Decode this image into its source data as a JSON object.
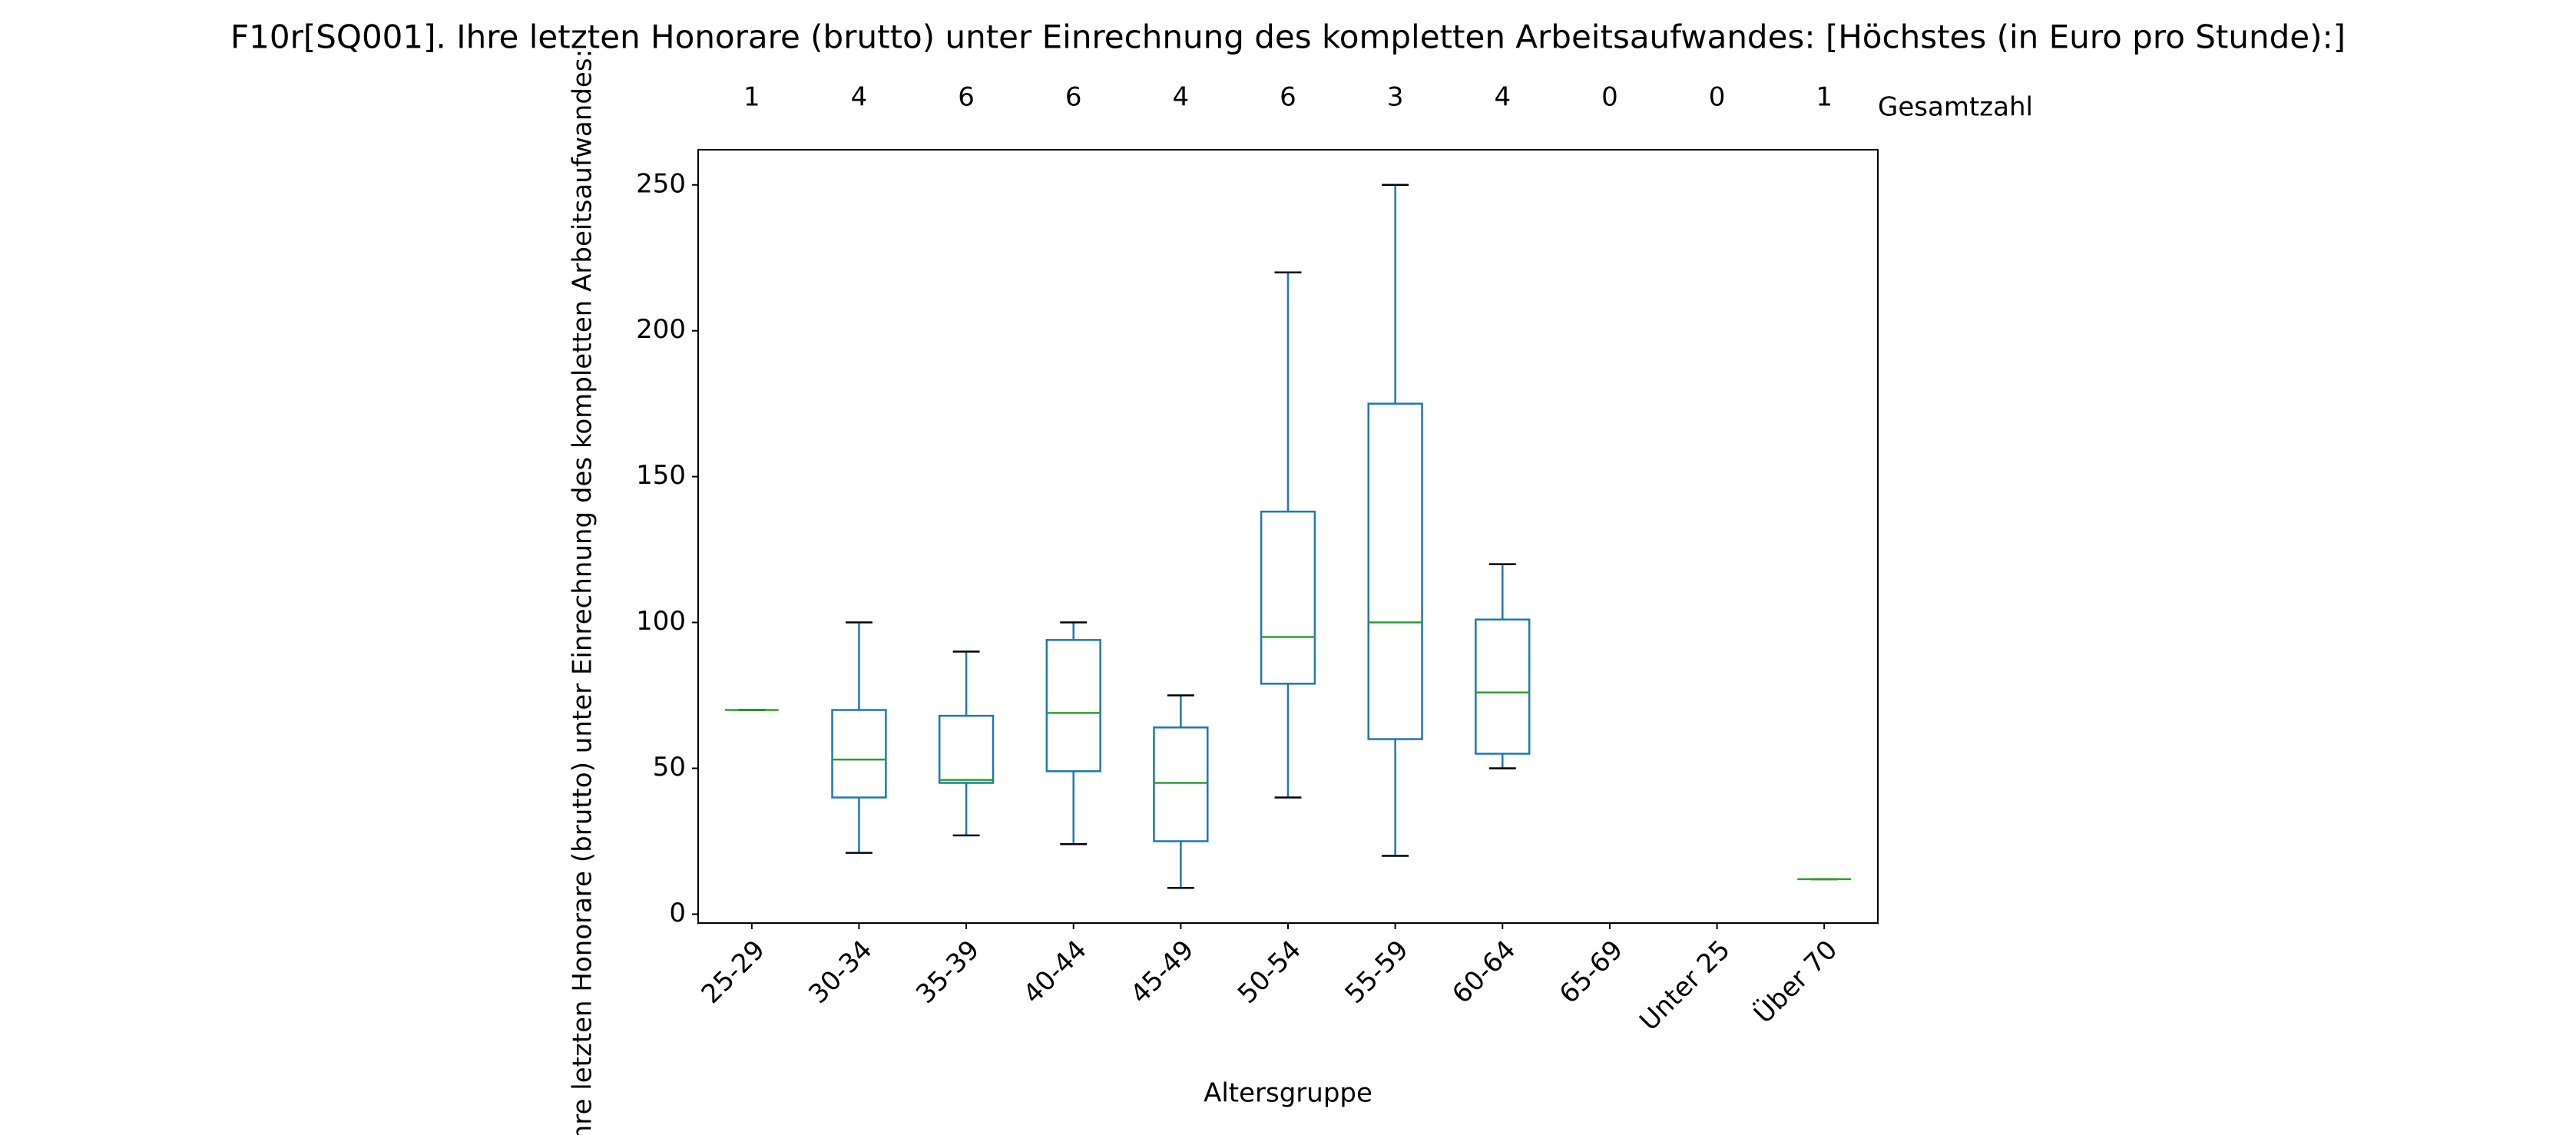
{
  "chart_data": {
    "type": "box",
    "title": "F10r[SQ001]. Ihre letzten Honorare (brutto) unter Einrechnung des kompletten Arbeitsaufwandes:  [Höchstes (in Euro pro Stunde):]",
    "x_label": "Altersgruppe",
    "y_label": "Ihre letzten Honorare (brutto) unter Einrechnung des kompletten Arbeitsaufwandes:",
    "categories": [
      "25-29",
      "30-34",
      "35-39",
      "40-44",
      "45-49",
      "50-54",
      "55-59",
      "60-64",
      "65-69",
      "Unter 25",
      "Über 70"
    ],
    "boxes": [
      {
        "min": 70,
        "q1": 70,
        "median": 70,
        "q3": 70,
        "max": 70
      },
      {
        "min": 21,
        "q1": 40,
        "median": 53,
        "q3": 70,
        "max": 100
      },
      {
        "min": 27,
        "q1": 45,
        "median": 46,
        "q3": 68,
        "max": 90
      },
      {
        "min": 24,
        "q1": 49,
        "median": 69,
        "q3": 94,
        "max": 100
      },
      {
        "min": 9,
        "q1": 25,
        "median": 45,
        "q3": 64,
        "max": 75
      },
      {
        "min": 40,
        "q1": 79,
        "median": 95,
        "q3": 138,
        "max": 220
      },
      {
        "min": 20,
        "q1": 60,
        "median": 100,
        "q3": 175,
        "max": 250
      },
      {
        "min": 50,
        "q1": 55,
        "median": 76,
        "q3": 101,
        "max": 120
      },
      null,
      null,
      {
        "min": 12,
        "q1": 12,
        "median": 12,
        "q3": 12,
        "max": 12
      }
    ],
    "counts_label": "Gesamtzahl",
    "counts": [
      1,
      4,
      6,
      6,
      4,
      6,
      3,
      4,
      0,
      0,
      1
    ],
    "box_color": "#1f77b4",
    "median_color": "#2ca02c",
    "cap_color": "#000000",
    "ylim": [
      -3.05,
      262.05
    ],
    "yticks": [
      0,
      50,
      100,
      150,
      200,
      250
    ]
  }
}
